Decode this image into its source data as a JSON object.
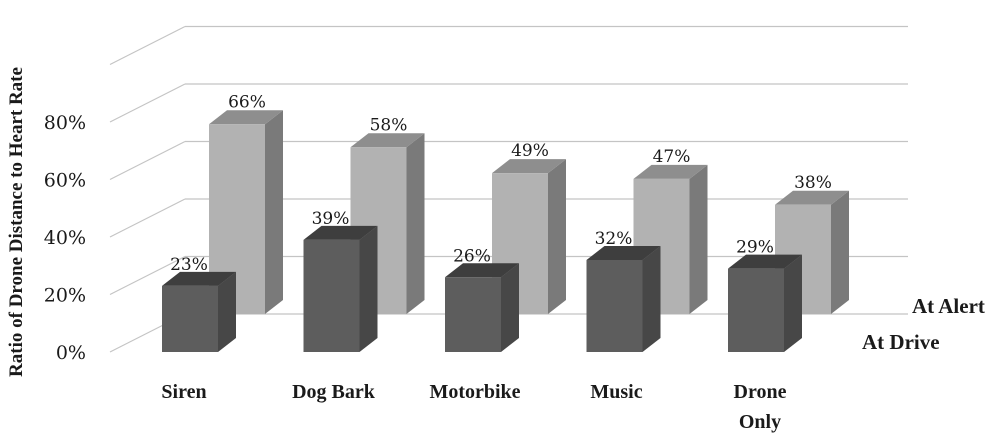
{
  "chart_data": {
    "type": "bar",
    "title": "",
    "ylabel": "Ratio of Drone Distance to Heart Rate",
    "xlabel": "",
    "ylim": [
      0,
      100
    ],
    "y_ticks": [
      0,
      20,
      40,
      60,
      80
    ],
    "y_tick_labels": [
      "0%",
      "20%",
      "40%",
      "60%",
      "80%"
    ],
    "grid": true,
    "categories": [
      {
        "lines": [
          "Siren"
        ]
      },
      {
        "lines": [
          "Dog Bark"
        ]
      },
      {
        "lines": [
          "Motorbike"
        ]
      },
      {
        "lines": [
          "Music"
        ]
      },
      {
        "lines": [
          "Drone",
          "Only"
        ]
      }
    ],
    "series": [
      {
        "name": "At Alert",
        "values": [
          66,
          58,
          49,
          47,
          38
        ],
        "value_labels": [
          "66%",
          "58%",
          "49%",
          "47%",
          "38%"
        ]
      },
      {
        "name": "At Drive",
        "values": [
          23,
          39,
          26,
          32,
          29
        ],
        "value_labels": [
          "23%",
          "39%",
          "26%",
          "32%",
          "29%"
        ]
      }
    ],
    "colors": {
      "alert_front": "#b2b2b2",
      "alert_top": "#8e8e8e",
      "alert_side": "#7a7a7a",
      "drive_front": "#5d5d5d",
      "drive_top": "#3e3e3e",
      "drive_side": "#474747",
      "grid": "#c4c4c4"
    }
  }
}
